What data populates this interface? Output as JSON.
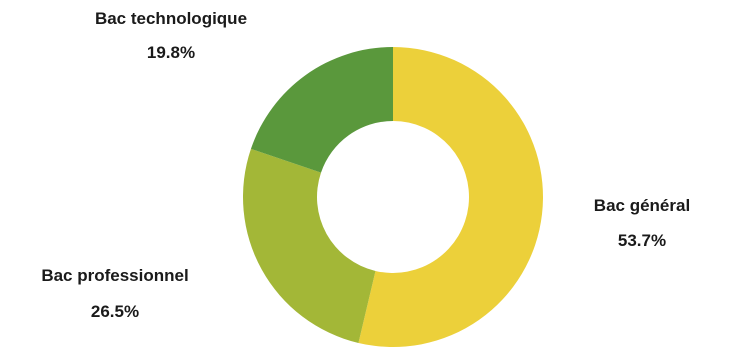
{
  "chart_data": {
    "type": "pie",
    "variant": "donut",
    "title": "",
    "start_angle_deg": 0,
    "direction": "clockwise",
    "legend": "none",
    "slices": [
      {
        "label": "Bac général",
        "value": 53.7,
        "display": "53.7%",
        "color": "#ecd03a"
      },
      {
        "label": "Bac professionnel",
        "value": 26.5,
        "display": "26.5%",
        "color": "#a3b737"
      },
      {
        "label": "Bac technologique",
        "value": 19.8,
        "display": "19.8%",
        "color": "#5a983c"
      }
    ]
  }
}
